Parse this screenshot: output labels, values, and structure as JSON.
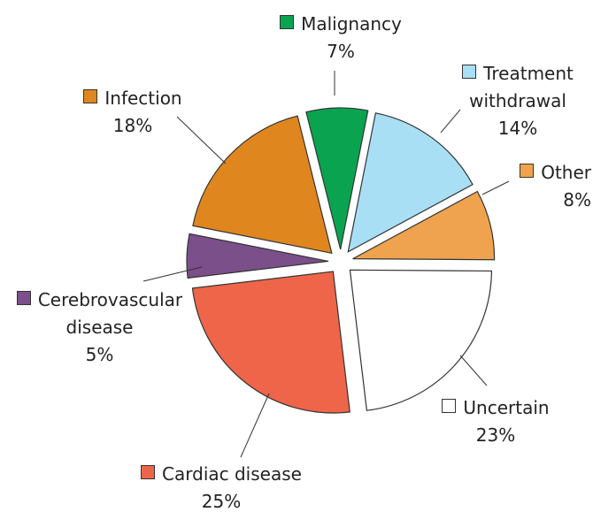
{
  "chart_data": {
    "type": "pie",
    "categories": [
      "Malignancy",
      "Treatment withdrawal",
      "Other",
      "Uncertain",
      "Cardiac disease",
      "Cerebrovascular disease",
      "Infection"
    ],
    "values": [
      7,
      14,
      8,
      23,
      25,
      5,
      18
    ],
    "value_labels": [
      "7%",
      "14%",
      "8%",
      "23%",
      "25%",
      "5%",
      "18%"
    ],
    "colors": [
      "#0aa451",
      "#a8dff5",
      "#efa34e",
      "#ffffff",
      "#ef6549",
      "#7a4f8a",
      "#e0861f"
    ],
    "exploded": true
  }
}
